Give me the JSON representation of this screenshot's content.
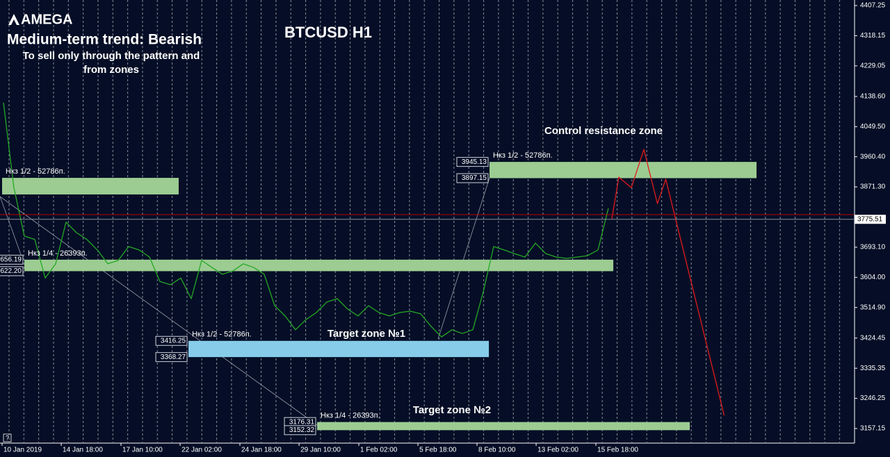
{
  "chart_data": {
    "type": "line",
    "logo": "AMEGA",
    "title": "BTCUSD H1",
    "headline": "Medium-term trend: Bearish",
    "subtitle": [
      "To sell only through the pattern and",
      "from zones"
    ],
    "help": "?",
    "xlim": [
      -0.33,
      81.53
    ],
    "xticks": [
      {
        "value": -0.13,
        "label": "10 Jan 2019"
      },
      {
        "value": 5.54,
        "label": "14 Jan 18:00"
      },
      {
        "value": 11.27,
        "label": "17 Jan 10:00"
      },
      {
        "value": 16.94,
        "label": "22 Jan 02:00"
      },
      {
        "value": 22.67,
        "label": "24 Jan 18:00"
      },
      {
        "value": 28.34,
        "label": "29 Jan 10:00"
      },
      {
        "value": 34.07,
        "label": "1 Feb 02:00"
      },
      {
        "value": 39.74,
        "label": "5 Feb 18:00"
      },
      {
        "value": 45.4,
        "label": "8 Feb 10:00"
      },
      {
        "value": 51.07,
        "label": "13 Feb 02:00"
      },
      {
        "value": 56.8,
        "label": "15 Feb 18:00"
      }
    ],
    "ylim": [
      3116.1,
      4423.7
    ],
    "yticks": [
      4407.25,
      4318.15,
      4229.05,
      {
        "value": 4138.6,
        "label": "4138.60"
      },
      {
        "value": 4049.5,
        "label": "4049.50"
      },
      {
        "value": 3960.4,
        "label": "3960.40"
      },
      {
        "value": 3871.3,
        "label": "3871.30"
      },
      {
        "value": 3693.1,
        "label": "3693.10"
      },
      {
        "value": 3604,
        "label": "3604.00"
      },
      {
        "value": 3514.9,
        "label": "3514.90"
      },
      3424.45,
      3335.35,
      3246.25,
      3157.15
    ],
    "series": [
      {
        "color": "#25a825",
        "x": [
          0,
          1,
          2,
          3,
          4,
          5,
          6,
          7,
          8,
          9,
          10,
          11,
          12,
          13,
          14,
          15,
          16,
          17,
          18,
          19,
          20,
          21,
          22,
          23,
          24,
          25,
          26,
          27,
          28,
          29,
          30,
          31,
          32,
          33,
          34,
          35,
          36,
          37,
          38,
          39,
          40,
          41,
          42,
          43,
          44,
          45,
          46,
          47,
          48,
          49,
          50,
          51,
          52,
          53,
          54,
          55,
          56,
          57,
          58
        ],
        "values": [
          4120,
          3869,
          3726,
          3716,
          3602,
          3644,
          3767,
          3736,
          3716,
          3685,
          3644,
          3654,
          3695,
          3685,
          3664,
          3592,
          3582,
          3602,
          3541,
          3654,
          3633,
          3613,
          3623,
          3644,
          3633,
          3613,
          3520,
          3490,
          3449,
          3479,
          3500,
          3531,
          3541,
          3510,
          3490,
          3520,
          3500,
          3490,
          3500,
          3504,
          3496,
          3459,
          3428,
          3449,
          3438,
          3449,
          3561,
          3695,
          3685,
          3674,
          3664,
          3705,
          3674,
          3664,
          3660,
          3664,
          3668,
          3685,
          3808
        ]
      },
      {
        "color": "#e01b1b",
        "x": [
          58.33,
          59,
          60.2,
          61.4,
          62.7,
          63.5,
          69.1
        ],
        "values": [
          3777,
          3900,
          3869,
          3982,
          3822,
          3894,
          3196
        ]
      }
    ],
    "price_lines": [
      {
        "value": 3789.4,
        "color": "#c00000"
      },
      {
        "value": 3775.51,
        "label": "3775.51",
        "color": "#8a8f9c"
      }
    ],
    "zones": [
      {
        "color": "#9ccc92",
        "x": [
          -0.13,
          16.8
        ],
        "top": 3898,
        "bottom": 3849,
        "tagged": false,
        "label": "Нкз 1/2 - 52786п."
      },
      {
        "color": "#9ccc92",
        "x": [
          2.0,
          58.47
        ],
        "top": 3656.19,
        "bottom": {
          "value": 3622.2,
          "label": "3622.20"
        },
        "tagged": true,
        "label": "Нкз 1/4 - 26393п."
      },
      {
        "color": "#87cdea",
        "x": [
          17.74,
          46.54
        ],
        "top": 3416.25,
        "bottom": 3368.27,
        "tagged": true,
        "label": "Нкз 1/2 - 52786п.",
        "note": "Target zone №1"
      },
      {
        "color": "#9ccc92",
        "x": [
          30.07,
          65.8
        ],
        "top": 3176.31,
        "bottom": 3152.32,
        "tagged": true,
        "label": "Нкз 1/4 - 26393п.",
        "note": "Target zone №2"
      },
      {
        "color": "#9ccc92",
        "x": [
          46.6,
          72.2
        ],
        "top": 3945.13,
        "bottom": 3897.15,
        "tagged": true,
        "label": "Нкз 1/2 - 52786п.",
        "note": "Control resistance zone"
      }
    ]
  }
}
